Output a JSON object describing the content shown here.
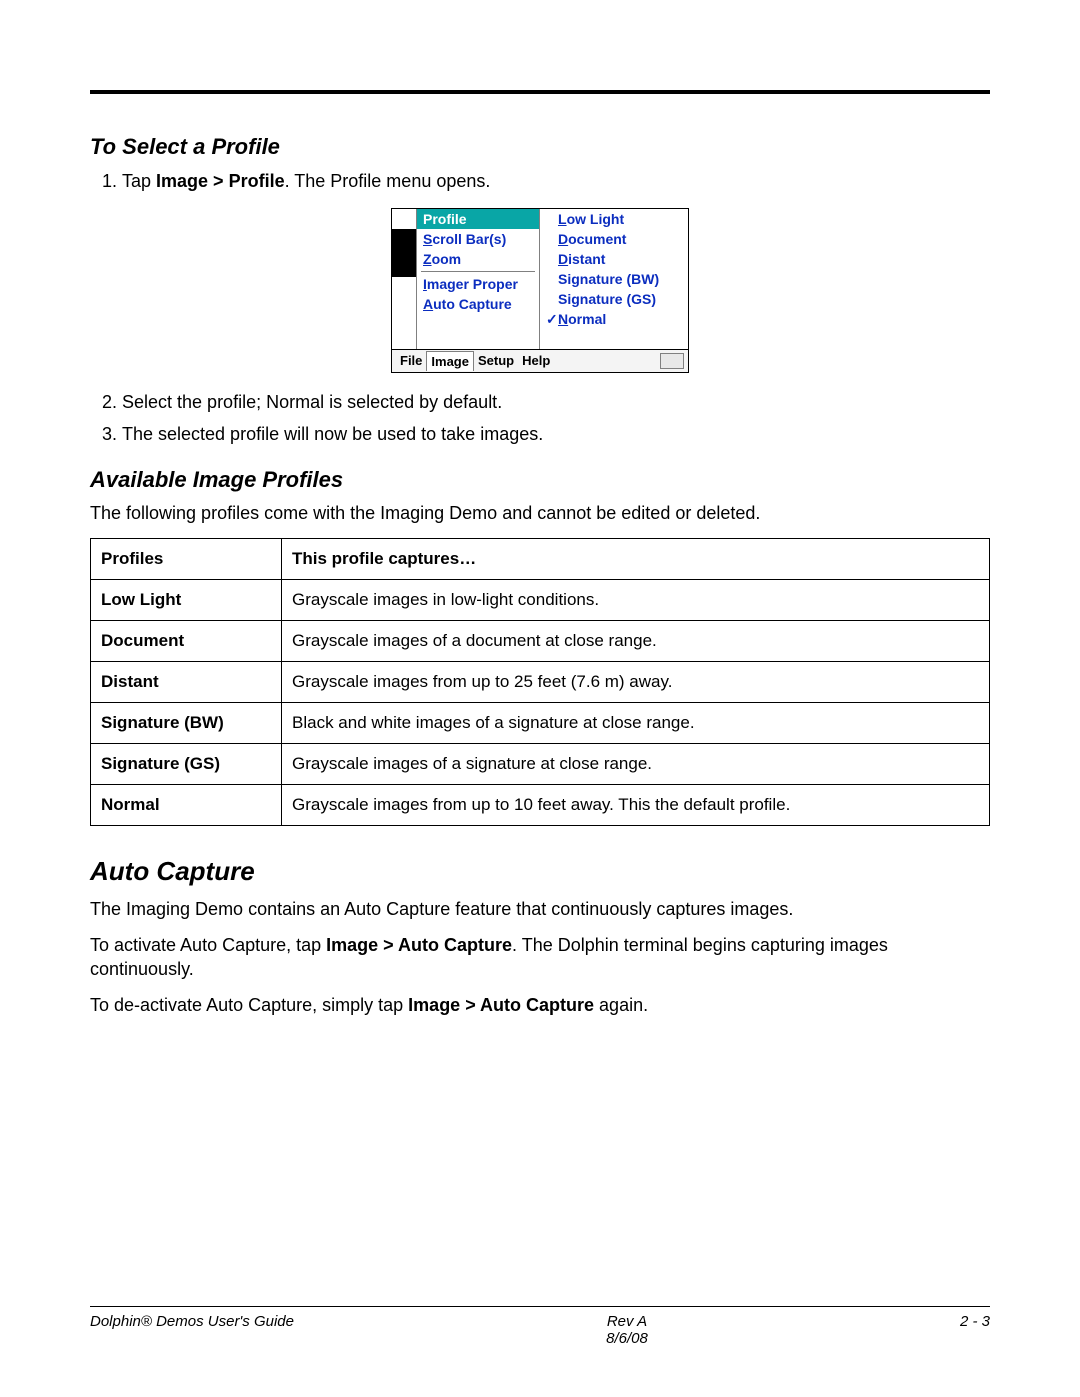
{
  "headings": {
    "select_profile": "To Select a Profile",
    "available_profiles": "Available Image Profiles",
    "auto_capture": "Auto Capture"
  },
  "steps": {
    "s1_pre": "Tap ",
    "s1_bold": "Image > Profile",
    "s1_post": ". The Profile menu opens.",
    "s2": "Select the profile; Normal is selected by default.",
    "s3": "The selected profile will now be used to take images."
  },
  "screenshot": {
    "menu1": {
      "highlight": "Profile",
      "scrollbars_pre": "S",
      "scrollbars_mid": "croll Bar(s)",
      "zoom_pre": "Z",
      "zoom_mid": "oom",
      "imager_pre": "I",
      "imager_mid": "mager Proper",
      "auto_pre": "A",
      "auto_mid": "uto Capture"
    },
    "menu2": {
      "low_pre": "L",
      "low_mid": "ow Light",
      "doc_pre": "D",
      "doc_mid": "ocument",
      "dist_pre": "D",
      "dist_mid": "istant",
      "sigbw": "Signature (BW)",
      "siggs": "Signature (GS)",
      "normal_pre": "N",
      "normal_mid": "ormal",
      "check": "✓"
    },
    "bar": {
      "file": "File",
      "image": "Image",
      "setup": "Setup",
      "help": "Help"
    }
  },
  "available_intro": "The following profiles come with the Imaging Demo and cannot be edited or deleted.",
  "table": {
    "h1": "Profiles",
    "h2": "This profile captures…",
    "rows": [
      {
        "name": "Low Light",
        "desc": "Grayscale images in low-light conditions."
      },
      {
        "name": "Document",
        "desc": "Grayscale images of a document at close range."
      },
      {
        "name": "Distant",
        "desc": "Grayscale images from up to 25 feet (7.6 m) away."
      },
      {
        "name": "Signature (BW)",
        "desc": "Black and white images of a signature at close range."
      },
      {
        "name": "Signature (GS)",
        "desc": "Grayscale images of a signature at close range."
      },
      {
        "name": "Normal",
        "desc": "Grayscale images from up to 10 feet away. This the default profile."
      }
    ]
  },
  "auto": {
    "p1": "The Imaging Demo contains an Auto Capture feature that continuously captures images.",
    "p2_pre": "To activate Auto Capture, tap ",
    "p2_bold": "Image > Auto Capture",
    "p2_post": ". The Dolphin terminal begins capturing images continuously.",
    "p3_pre": "To de-activate Auto Capture, simply tap ",
    "p3_bold": "Image > Auto Capture",
    "p3_post": " again."
  },
  "footer": {
    "left": "Dolphin® Demos User's Guide",
    "mid1": "Rev A",
    "mid2": "8/6/08",
    "right": "2 - 3"
  }
}
